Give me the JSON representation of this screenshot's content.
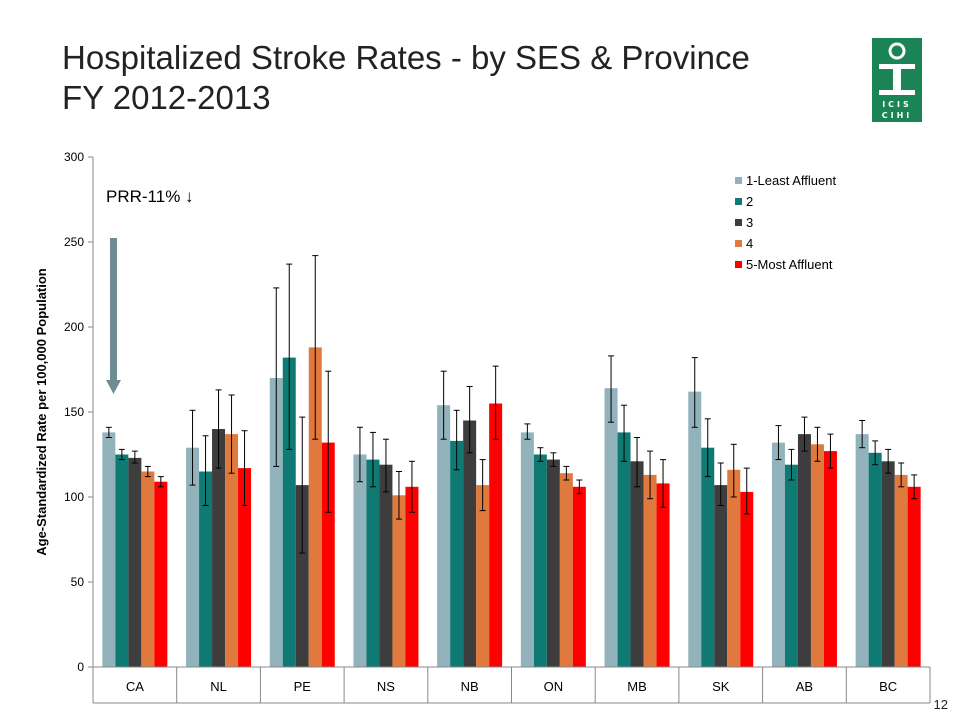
{
  "header": {
    "title_line1": "Hospitalized  Stroke Rates - by SES & Province",
    "title_line2": "FY 2012-2013",
    "logo_icon": "icis-cihi-logo-icon",
    "logo_text": "ICIS CIHI"
  },
  "page_number": "12",
  "annotation": {
    "text": "PRR-11% ↓",
    "arrow_icon": "down-arrow-icon"
  },
  "colors": {
    "series": [
      "#93b3bc",
      "#0e7a73",
      "#3d3d3d",
      "#e0793e",
      "#ff0000"
    ],
    "arrow": "#6f8c94",
    "logo": "#1a8457"
  },
  "chart_data": {
    "type": "bar",
    "ylabel": "Age-Standardized Rate per 100,000 Population",
    "xlabel": "",
    "ylim": [
      0,
      300
    ],
    "yticks": [
      0,
      50,
      100,
      150,
      200,
      250,
      300
    ],
    "categories": [
      "CA",
      "NL",
      "PE",
      "NS",
      "NB",
      "ON",
      "MB",
      "SK",
      "AB",
      "BC"
    ],
    "legend_position": "top-right",
    "series": [
      {
        "name": "1-Least Affluent",
        "values": [
          138,
          129,
          170,
          125,
          154,
          138,
          164,
          162,
          132,
          137
        ],
        "err_low": [
          135,
          107,
          118,
          109,
          134,
          134,
          144,
          141,
          122,
          129
        ],
        "err_high": [
          141,
          151,
          223,
          141,
          174,
          143,
          183,
          182,
          142,
          145
        ]
      },
      {
        "name": "2",
        "values": [
          125,
          115,
          182,
          122,
          133,
          125,
          138,
          129,
          119,
          126
        ],
        "err_low": [
          122,
          95,
          128,
          106,
          116,
          121,
          121,
          112,
          110,
          119
        ],
        "err_high": [
          128,
          136,
          237,
          138,
          151,
          129,
          154,
          146,
          128,
          133
        ]
      },
      {
        "name": "3",
        "values": [
          123,
          140,
          107,
          119,
          145,
          122,
          121,
          107,
          137,
          121
        ],
        "err_low": [
          120,
          117,
          67,
          103,
          126,
          118,
          106,
          95,
          127,
          114
        ],
        "err_high": [
          127,
          163,
          147,
          134,
          165,
          126,
          135,
          120,
          147,
          128
        ]
      },
      {
        "name": "4",
        "values": [
          115,
          137,
          188,
          101,
          107,
          114,
          113,
          116,
          131,
          113
        ],
        "err_low": [
          112,
          114,
          134,
          87,
          92,
          110,
          99,
          100,
          121,
          106
        ],
        "err_high": [
          118,
          160,
          242,
          115,
          122,
          118,
          127,
          131,
          141,
          120
        ]
      },
      {
        "name": "5-Most Affluent",
        "values": [
          109,
          117,
          132,
          106,
          155,
          106,
          108,
          103,
          127,
          106
        ],
        "err_low": [
          106,
          95,
          91,
          91,
          134,
          102,
          94,
          90,
          117,
          99
        ],
        "err_high": [
          112,
          139,
          174,
          121,
          177,
          110,
          122,
          117,
          137,
          113
        ]
      }
    ]
  }
}
